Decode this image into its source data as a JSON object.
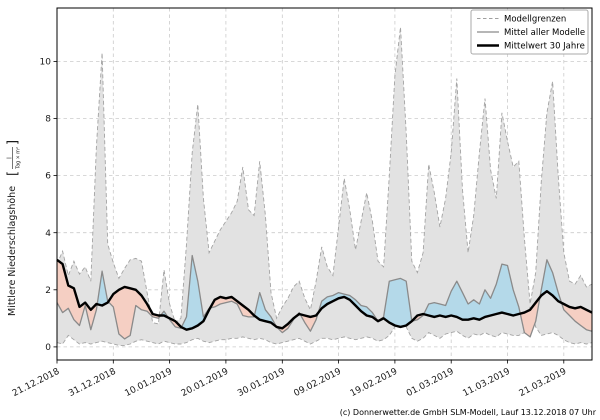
{
  "chart_data": {
    "type": "area",
    "title": "",
    "xlabel": "",
    "ylabel_prefix": "Mittlere Niederschlagshöhe",
    "ylabel_unit_numerator": "l",
    "ylabel_unit_denominator": "Tag × m²",
    "caption": "(c) Donnerwetter.de GmbH SLM-Modell, Lauf 13.12.2018 07 Uhr",
    "grid": true,
    "legend_position": "top-right",
    "x_tick_labels": [
      "21.12.2018",
      "31.12.2018",
      "10.01.2019",
      "20.01.2019",
      "30.01.2019",
      "09.02.2019",
      "19.02.2019",
      "01.03.2019",
      "11.03.2019",
      "21.03.2019"
    ],
    "x_tick_days": [
      0,
      10,
      20,
      30,
      40,
      50,
      60,
      70,
      80,
      90
    ],
    "y_ticks": [
      0,
      2,
      4,
      6,
      8,
      10
    ],
    "xlim": [
      0,
      95
    ],
    "ylim": [
      -0.46,
      11.87
    ],
    "legend": {
      "entries": [
        {
          "label": "Modellgrenzen",
          "style": "dashed",
          "color": "#a0a0a0"
        },
        {
          "label": "Mittel aller Modelle",
          "style": "solid",
          "color": "#8a8a8a"
        },
        {
          "label": "Mittelwert 30 Jahre",
          "style": "solid-thick",
          "color": "#000000"
        }
      ]
    },
    "colors": {
      "band_fill": "#e2e2e2",
      "band_edge": "#a3a3a3",
      "above_normal_fill": "#b4d9e9",
      "below_normal_fill": "#f5cfc3",
      "model_mean_line": "#8a8a8a",
      "climate_mean_line": "#000000",
      "grid": "#cbcbcb",
      "frame": "#000000",
      "text": "#1a1a1a"
    },
    "series": [
      {
        "name": "Modellgrenzen (obere Grenze)",
        "values": [
          2.9,
          3.35,
          2.5,
          3.0,
          2.55,
          2.8,
          2.3,
          7.0,
          10.3,
          3.6,
          2.95,
          2.4,
          2.75,
          3.05,
          3.1,
          3.0,
          1.9,
          0.85,
          0.8,
          2.7,
          1.5,
          0.85,
          1.0,
          3.6,
          6.8,
          8.5,
          5.2,
          3.3,
          3.7,
          4.1,
          4.4,
          4.7,
          5.1,
          6.3,
          4.8,
          4.6,
          6.5,
          4.6,
          1.9,
          1.0,
          1.4,
          1.7,
          2.1,
          2.3,
          1.7,
          1.3,
          2.3,
          3.5,
          2.8,
          2.5,
          4.2,
          5.9,
          4.8,
          3.4,
          4.4,
          5.4,
          4.4,
          3.0,
          2.8,
          6.0,
          9.5,
          11.2,
          7.5,
          3.0,
          2.6,
          3.3,
          6.4,
          5.4,
          4.2,
          5.2,
          6.8,
          9.4,
          5.5,
          3.3,
          4.6,
          6.8,
          8.7,
          6.2,
          5.2,
          8.2,
          7.2,
          6.3,
          6.5,
          3.8,
          1.5,
          2.6,
          5.8,
          8.2,
          9.3,
          6.0,
          3.3,
          2.3,
          2.2,
          2.5,
          2.1,
          2.2
        ]
      },
      {
        "name": "Modellgrenzen (untere Grenze)",
        "values": [
          0.15,
          0.1,
          0.4,
          0.25,
          0.1,
          0.15,
          0.1,
          0.15,
          0.2,
          0.15,
          0.1,
          0.05,
          0.05,
          0.1,
          0.2,
          0.25,
          0.2,
          0.15,
          0.1,
          0.2,
          0.15,
          0.1,
          0.1,
          0.15,
          0.25,
          0.3,
          0.2,
          0.15,
          0.2,
          0.25,
          0.25,
          0.3,
          0.3,
          0.35,
          0.3,
          0.25,
          0.3,
          0.25,
          0.15,
          0.1,
          0.15,
          0.2,
          0.25,
          0.3,
          0.2,
          0.1,
          0.2,
          0.3,
          0.3,
          0.25,
          0.3,
          0.35,
          0.3,
          0.25,
          0.3,
          0.35,
          0.3,
          0.2,
          0.25,
          0.4,
          0.7,
          0.95,
          0.7,
          0.3,
          0.2,
          0.3,
          0.5,
          0.4,
          0.3,
          0.45,
          0.5,
          0.55,
          0.4,
          0.3,
          0.45,
          0.4,
          0.5,
          0.4,
          0.35,
          0.5,
          0.45,
          0.4,
          0.4,
          0.5,
          1.4,
          0.7,
          0.4,
          0.45,
          0.5,
          0.4,
          0.25,
          0.15,
          0.1,
          0.15,
          0.1,
          0.15
        ]
      },
      {
        "name": "Mittel aller Modelle",
        "values": [
          1.55,
          1.2,
          1.35,
          0.95,
          0.75,
          1.45,
          0.6,
          1.3,
          2.65,
          1.6,
          1.4,
          0.45,
          0.28,
          0.4,
          1.45,
          1.3,
          1.25,
          1.05,
          1.0,
          1.25,
          0.95,
          0.7,
          0.65,
          1.05,
          3.2,
          2.3,
          1.05,
          1.35,
          1.4,
          1.5,
          1.55,
          1.6,
          1.5,
          1.1,
          1.05,
          1.05,
          1.9,
          1.3,
          1.05,
          0.7,
          0.5,
          0.65,
          0.95,
          1.2,
          0.85,
          0.55,
          0.95,
          1.6,
          1.75,
          1.8,
          1.9,
          1.85,
          1.8,
          1.65,
          1.45,
          1.4,
          1.2,
          0.9,
          1.05,
          2.3,
          2.35,
          2.4,
          2.3,
          0.9,
          0.95,
          1.1,
          1.5,
          1.55,
          1.5,
          1.45,
          1.95,
          2.3,
          1.9,
          1.5,
          1.65,
          1.5,
          2.0,
          1.7,
          2.2,
          2.9,
          2.85,
          2.0,
          1.4,
          0.5,
          0.35,
          0.9,
          2.0,
          3.05,
          2.6,
          1.9,
          1.3,
          1.1,
          0.9,
          0.75,
          0.6,
          0.55
        ]
      },
      {
        "name": "Mittelwert 30 Jahre",
        "values": [
          3.05,
          2.9,
          2.15,
          2.05,
          1.4,
          1.55,
          1.3,
          1.5,
          1.45,
          1.55,
          1.85,
          2.0,
          2.1,
          2.05,
          2.0,
          1.8,
          1.5,
          1.15,
          1.1,
          1.1,
          1.0,
          0.9,
          0.7,
          0.6,
          0.65,
          0.75,
          0.9,
          1.3,
          1.65,
          1.75,
          1.7,
          1.75,
          1.6,
          1.45,
          1.3,
          1.1,
          0.95,
          0.9,
          0.85,
          0.7,
          0.65,
          0.8,
          1.0,
          1.15,
          1.1,
          1.05,
          1.1,
          1.35,
          1.5,
          1.6,
          1.7,
          1.75,
          1.65,
          1.45,
          1.25,
          1.1,
          1.05,
          0.9,
          1.0,
          0.85,
          0.75,
          0.7,
          0.75,
          0.9,
          1.1,
          1.15,
          1.1,
          1.05,
          1.1,
          1.05,
          1.1,
          1.05,
          0.95,
          0.95,
          1.0,
          0.95,
          1.05,
          1.1,
          1.15,
          1.2,
          1.15,
          1.1,
          1.15,
          1.2,
          1.3,
          1.55,
          1.8,
          1.95,
          1.8,
          1.6,
          1.5,
          1.4,
          1.35,
          1.4,
          1.3,
          1.2
        ]
      }
    ]
  }
}
